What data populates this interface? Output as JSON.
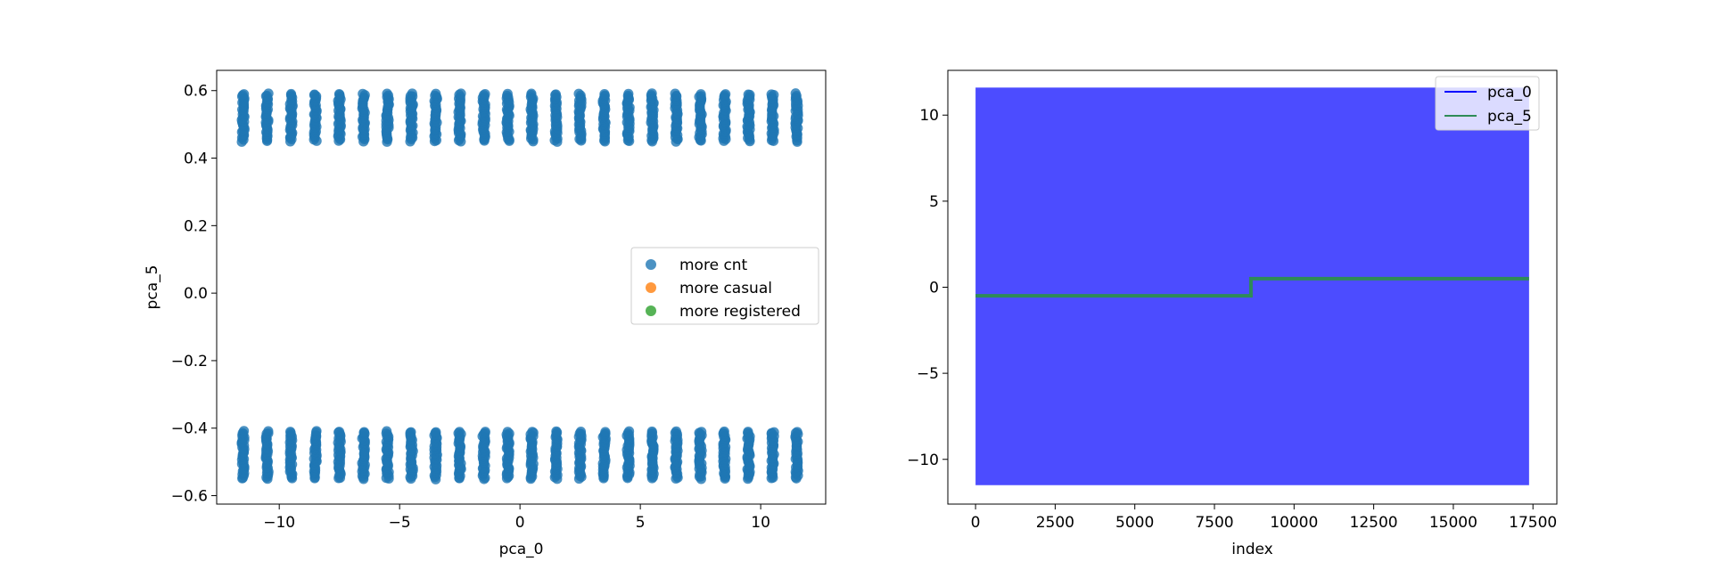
{
  "chart_data": [
    {
      "type": "scatter",
      "title": "",
      "xlabel": "pca_0",
      "ylabel": "pca_5",
      "xlim": [
        -12.6,
        12.7
      ],
      "ylim": [
        -0.625,
        0.66
      ],
      "xticks": [
        -10,
        -5,
        0,
        5,
        10
      ],
      "yticks": [
        -0.6,
        -0.4,
        -0.2,
        0.0,
        0.2,
        0.4,
        0.6
      ],
      "ytick_labels": [
        "−0.6",
        "−0.4",
        "−0.2",
        "0.0",
        "0.2",
        "0.4",
        "0.6"
      ],
      "xtick_labels": [
        "−10",
        "−5",
        "0",
        "5",
        "10"
      ],
      "legend": {
        "placement": "center-right",
        "entries": [
          "more cnt",
          "more casual",
          "more registered"
        ]
      },
      "series": [
        {
          "name": "more cnt",
          "color": "#1f77b4",
          "x_columns": [
            -11.5,
            -10.5,
            -9.5,
            -8.5,
            -7.5,
            -6.5,
            -5.5,
            -4.5,
            -3.5,
            -2.5,
            -1.5,
            -0.5,
            0.5,
            1.5,
            2.5,
            3.5,
            4.5,
            5.5,
            6.5,
            7.5,
            8.5,
            9.5,
            10.5,
            11.5
          ],
          "upper_cluster_y": [
            0.45,
            0.59
          ],
          "lower_cluster_y": [
            -0.55,
            -0.41
          ]
        },
        {
          "name": "more casual",
          "color": "#ff7f0e",
          "points": []
        },
        {
          "name": "more registered",
          "color": "#2ca02c",
          "points": []
        }
      ]
    },
    {
      "type": "line",
      "title": "",
      "xlabel": "index",
      "ylabel": "",
      "xlim": [
        -870,
        18250
      ],
      "ylim": [
        -12.6,
        12.6
      ],
      "xticks": [
        0,
        2500,
        5000,
        7500,
        10000,
        12500,
        15000,
        17500
      ],
      "xtick_labels": [
        "0",
        "2500",
        "5000",
        "7500",
        "10000",
        "12500",
        "15000",
        "17500"
      ],
      "yticks": [
        -10,
        -5,
        0,
        5,
        10
      ],
      "ytick_labels": [
        "−10",
        "−5",
        "0",
        "5",
        "10"
      ],
      "legend": {
        "placement": "top-right",
        "entries": [
          "pca_0",
          "pca_5"
        ]
      },
      "series": [
        {
          "name": "pca_0",
          "color": "#0000ff",
          "x_range": [
            0,
            17378
          ],
          "y_envelope": [
            -11.5,
            11.6
          ],
          "note": ""
        },
        {
          "name": "pca_5",
          "color": "#2e8b57",
          "x_range": [
            0,
            17378
          ],
          "step_at": 8645,
          "y_before": -0.5,
          "y_after": 0.5
        }
      ]
    }
  ]
}
